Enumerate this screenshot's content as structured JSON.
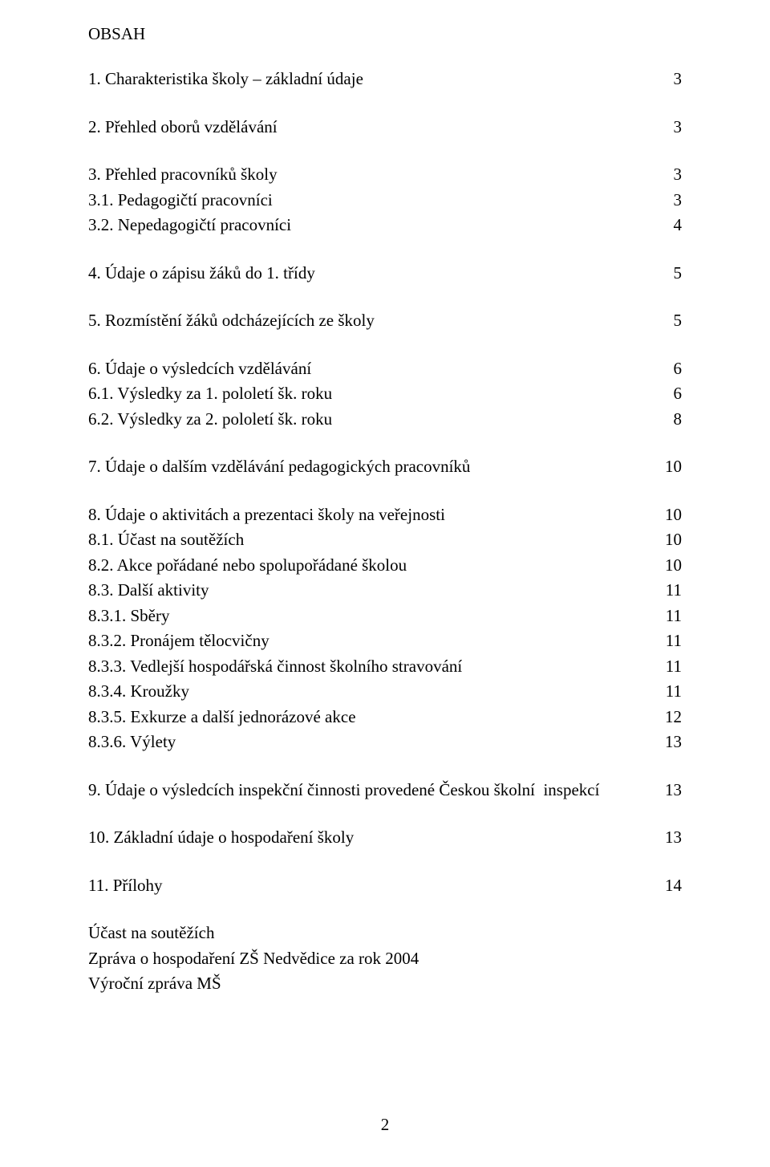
{
  "heading": "OBSAH",
  "groups": [
    [
      {
        "label": "1. Charakteristika školy – základní údaje",
        "page": "3"
      }
    ],
    [
      {
        "label": "2. Přehled oborů vzdělávání",
        "page": "3"
      }
    ],
    [
      {
        "label": "3. Přehled pracovníků školy",
        "page": "3"
      },
      {
        "label": "3.1. Pedagogičtí pracovníci",
        "page": "3"
      },
      {
        "label": "3.2. Nepedagogičtí pracovníci",
        "page": "4"
      }
    ],
    [
      {
        "label": "4. Údaje o zápisu žáků do 1. třídy",
        "page": "5"
      }
    ],
    [
      {
        "label": "5. Rozmístění žáků odcházejících ze školy",
        "page": "5"
      }
    ],
    [
      {
        "label": "6. Údaje o výsledcích vzdělávání",
        "page": "6"
      },
      {
        "label": "6.1. Výsledky za 1. pololetí šk. roku",
        "page": "6"
      },
      {
        "label": "6.2. Výsledky za 2. pololetí šk. roku",
        "page": "8"
      }
    ],
    [
      {
        "label": "7. Údaje o dalším vzdělávání pedagogických pracovníků",
        "page": "10"
      }
    ],
    [
      {
        "label": "8. Údaje o aktivitách a prezentaci školy na veřejnosti",
        "page": "10"
      },
      {
        "label": "8.1. Účast na soutěžích",
        "page": "10"
      },
      {
        "label": "8.2. Akce pořádané nebo spolupořádané školou",
        "page": "10"
      },
      {
        "label": "8.3. Další aktivity",
        "page": "11"
      },
      {
        "label": "8.3.1. Sběry",
        "page": "11"
      },
      {
        "label": "8.3.2. Pronájem tělocvičny",
        "page": "11"
      },
      {
        "label": "8.3.3. Vedlejší hospodářská činnost školního stravování",
        "page": "11"
      },
      {
        "label": "8.3.4. Kroužky",
        "page": "11"
      },
      {
        "label": "8.3.5. Exkurze a další jednorázové akce",
        "page": "12"
      },
      {
        "label": "8.3.6. Výlety",
        "page": "13"
      }
    ],
    [
      {
        "label": "9. Údaje o výsledcích inspekční činnosti provedené Českou školní  inspekcí",
        "page": "13"
      }
    ],
    [
      {
        "label": "10. Základní údaje o hospodaření školy",
        "page": "13"
      }
    ],
    [
      {
        "label": "11. Přílohy",
        "page": "14"
      }
    ]
  ],
  "footer_lines": [
    "Účast na soutěžích",
    "Zpráva o hospodaření ZŠ Nedvědice za rok 2004",
    "Výroční zpráva MŠ"
  ],
  "page_number": "2"
}
